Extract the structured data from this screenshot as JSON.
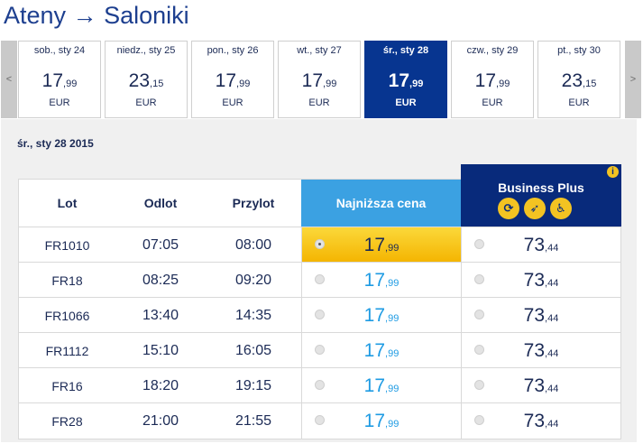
{
  "route": {
    "from": "Ateny",
    "arrow": "→",
    "to": "Saloniki"
  },
  "nav": {
    "prev": "<",
    "next": ">"
  },
  "days": [
    {
      "label": "sob., sty 24",
      "price_main": "17",
      "price_cents": ",99",
      "currency": "EUR",
      "selected": false
    },
    {
      "label": "niedz., sty 25",
      "price_main": "23",
      "price_cents": ",15",
      "currency": "EUR",
      "selected": false
    },
    {
      "label": "pon., sty 26",
      "price_main": "17",
      "price_cents": ",99",
      "currency": "EUR",
      "selected": false
    },
    {
      "label": "wt., sty 27",
      "price_main": "17",
      "price_cents": ",99",
      "currency": "EUR",
      "selected": false
    },
    {
      "label": "śr., sty 28",
      "price_main": "17",
      "price_cents": ",99",
      "currency": "EUR",
      "selected": true
    },
    {
      "label": "czw., sty 29",
      "price_main": "17",
      "price_cents": ",99",
      "currency": "EUR",
      "selected": false
    },
    {
      "label": "pt., sty 30",
      "price_main": "23",
      "price_cents": ",15",
      "currency": "EUR",
      "selected": false
    }
  ],
  "selected_date": "śr., sty 28 2015",
  "table": {
    "headers": {
      "lot": "Lot",
      "departure": "Odlot",
      "arrival": "Przylot",
      "lowest": "Najniższa cena",
      "business": "Business Plus"
    },
    "business_icons": [
      "priority-boarding-icon",
      "fast-track-icon",
      "seat-icon"
    ],
    "info_icon": "info-icon",
    "rows": [
      {
        "flight": "FR1010",
        "dep": "07:05",
        "arr": "08:00",
        "low_main": "17",
        "low_cents": ",99",
        "bus_main": "73",
        "bus_cents": ",44",
        "selected": true
      },
      {
        "flight": "FR18",
        "dep": "08:25",
        "arr": "09:20",
        "low_main": "17",
        "low_cents": ",99",
        "bus_main": "73",
        "bus_cents": ",44",
        "selected": false
      },
      {
        "flight": "FR1066",
        "dep": "13:40",
        "arr": "14:35",
        "low_main": "17",
        "low_cents": ",99",
        "bus_main": "73",
        "bus_cents": ",44",
        "selected": false
      },
      {
        "flight": "FR1112",
        "dep": "15:10",
        "arr": "16:05",
        "low_main": "17",
        "low_cents": ",99",
        "bus_main": "73",
        "bus_cents": ",44",
        "selected": false
      },
      {
        "flight": "FR16",
        "dep": "18:20",
        "arr": "19:15",
        "low_main": "17",
        "low_cents": ",99",
        "bus_main": "73",
        "bus_cents": ",44",
        "selected": false
      },
      {
        "flight": "FR28",
        "dep": "21:00",
        "arr": "21:55",
        "low_main": "17",
        "low_cents": ",99",
        "bus_main": "73",
        "bus_cents": ",44",
        "selected": false
      }
    ]
  },
  "colors": {
    "brand_navy": "#073590",
    "accent_blue": "#3ba1e2",
    "price_blue": "#1e9be3",
    "selected_yellow": "#f4b400"
  }
}
